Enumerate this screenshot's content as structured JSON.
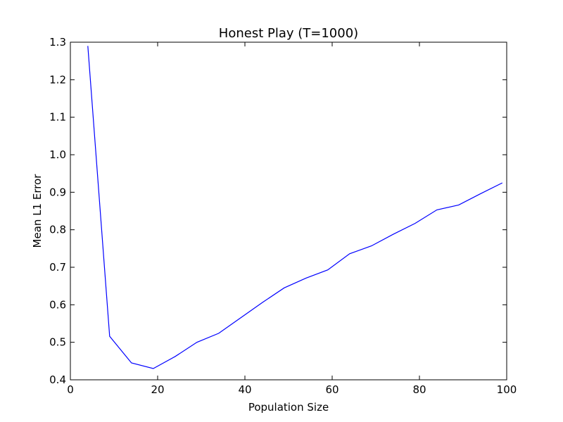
{
  "chart_data": {
    "type": "line",
    "title": "Honest Play (T=1000)",
    "xlabel": "Population Size",
    "ylabel": "Mean L1 Error",
    "xlim": [
      0,
      100
    ],
    "ylim": [
      0.4,
      1.3
    ],
    "xticks": [
      0,
      20,
      40,
      60,
      80,
      100
    ],
    "xtick_labels": [
      "0",
      "20",
      "40",
      "60",
      "80",
      "100"
    ],
    "yticks": [
      0.4,
      0.5,
      0.6,
      0.7,
      0.8,
      0.9,
      1.0,
      1.1,
      1.2,
      1.3
    ],
    "ytick_labels": [
      "0.4",
      "0.5",
      "0.6",
      "0.7",
      "0.8",
      "0.9",
      "1.0",
      "1.1",
      "1.2",
      "1.3"
    ],
    "grid": false,
    "series": [
      {
        "color": "#0000ff",
        "x": [
          4,
          9,
          14,
          19,
          24,
          29,
          34,
          39,
          44,
          49,
          54,
          59,
          64,
          69,
          74,
          79,
          84,
          89,
          94,
          99
        ],
        "y": [
          1.29,
          0.516,
          0.445,
          0.43,
          0.462,
          0.5,
          0.524,
          0.565,
          0.606,
          0.645,
          0.671,
          0.693,
          0.736,
          0.757,
          0.788,
          0.817,
          0.853,
          0.866,
          0.896,
          0.925
        ]
      }
    ]
  }
}
